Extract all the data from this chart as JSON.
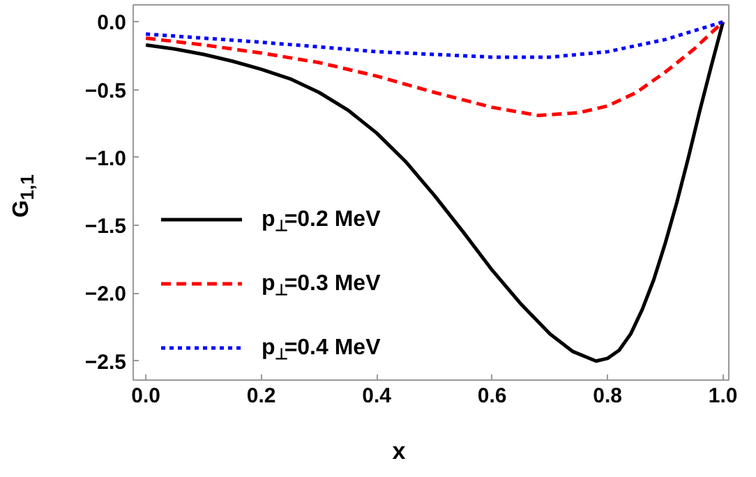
{
  "chart_data": {
    "type": "line",
    "xlabel": "x",
    "ylabel": "G$_{1,1}$",
    "xlim": [
      -0.022,
      1.01
    ],
    "ylim": [
      -2.64,
      0.125
    ],
    "xticks": [
      {
        "value": 0,
        "label": "0.0"
      },
      {
        "value": 0.2,
        "label": "0.2"
      },
      {
        "value": 0.4,
        "label": "0.4"
      },
      {
        "value": 0.6,
        "label": "0.6"
      },
      {
        "value": 0.8,
        "label": "0.8"
      },
      {
        "value": 1,
        "label": "1.0"
      }
    ],
    "yticks": [
      {
        "value": 0,
        "label": "0.0"
      },
      {
        "value": -0.5,
        "label": "−0.5"
      },
      {
        "value": -1,
        "label": "−1.0"
      },
      {
        "value": -1.5,
        "label": "−1.5"
      },
      {
        "value": -2,
        "label": "−2.0"
      },
      {
        "value": -2.5,
        "label": "−2.5"
      }
    ],
    "grid": false,
    "legend": "left",
    "marker": "none",
    "series": [
      {
        "name": "p$_{⊥}$=0.2 MeV",
        "color": "#000000",
        "line_style": "solid",
        "x": [
          0,
          0.05,
          0.1,
          0.15,
          0.2,
          0.25,
          0.3,
          0.35,
          0.4,
          0.45,
          0.5,
          0.55,
          0.6,
          0.65,
          0.7,
          0.74,
          0.78,
          0.8,
          0.82,
          0.84,
          0.86,
          0.88,
          0.9,
          0.92,
          0.94,
          0.96,
          0.98,
          1.0
        ],
        "values": [
          -0.17,
          -0.2,
          -0.24,
          -0.29,
          -0.35,
          -0.42,
          -0.52,
          -0.65,
          -0.82,
          -1.03,
          -1.28,
          -1.55,
          -1.83,
          -2.08,
          -2.3,
          -2.43,
          -2.5,
          -2.48,
          -2.42,
          -2.3,
          -2.12,
          -1.9,
          -1.63,
          -1.33,
          -1.0,
          -0.65,
          -0.32,
          0
        ]
      },
      {
        "name": "p$_{⊥}$=0.3 MeV",
        "color": "#ff0000",
        "line_style": "dashed",
        "x": [
          0,
          0.1,
          0.2,
          0.3,
          0.4,
          0.5,
          0.6,
          0.68,
          0.75,
          0.8,
          0.85,
          0.9,
          0.95,
          1.0
        ],
        "values": [
          -0.12,
          -0.17,
          -0.23,
          -0.3,
          -0.4,
          -0.52,
          -0.63,
          -0.69,
          -0.67,
          -0.62,
          -0.52,
          -0.37,
          -0.2,
          0
        ]
      },
      {
        "name": "p$_{⊥}$=0.4 MeV",
        "color": "#0000ff",
        "line_style": "dotted",
        "x": [
          0,
          0.2,
          0.4,
          0.6,
          0.7,
          0.8,
          0.9,
          1.0
        ],
        "values": [
          -0.09,
          -0.15,
          -0.22,
          -0.26,
          -0.26,
          -0.22,
          -0.13,
          0
        ]
      }
    ]
  }
}
